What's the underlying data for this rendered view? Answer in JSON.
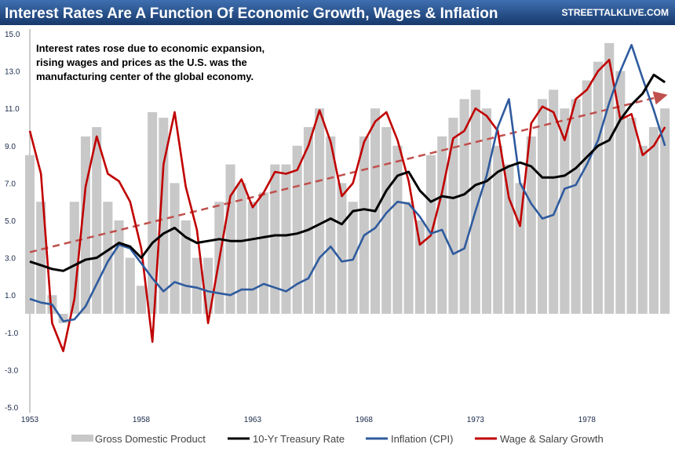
{
  "header": {
    "title": "Interest Rates Are A Function Of Economic Growth, Wages & Inflation",
    "brand": "STREETTALKLIVE.COM"
  },
  "chart_data": {
    "type": "line",
    "x_ticks": [
      "1953",
      "1958",
      "1963",
      "1968",
      "1973",
      "1978"
    ],
    "y_ticks": [
      "15.0",
      "13.0",
      "11.0",
      "9.0",
      "7.0",
      "5.0",
      "3.0",
      "1.0",
      "-1.0",
      "-3.0",
      "-5.0"
    ],
    "ylim": [
      -5,
      15
    ],
    "xlim": [
      1953,
      1981.6
    ],
    "annotation": [
      "Interest rates rose due to  economic expansion,",
      "rising wages and prices as the U.S. was the",
      "manufacturing center of the global economy."
    ],
    "trend_line": {
      "x": [
        1953,
        1981.5
      ],
      "y": [
        3.3,
        11.7
      ]
    },
    "series": [
      {
        "name": "Gross Domestic Product",
        "kind": "bars",
        "color": "#c8c8c8",
        "x": [
          1953,
          1953.5,
          1954,
          1954.5,
          1955,
          1955.5,
          1956,
          1956.5,
          1957,
          1957.5,
          1958,
          1958.5,
          1959,
          1959.5,
          1960,
          1960.5,
          1961,
          1961.5,
          1962,
          1962.5,
          1963,
          1963.5,
          1964,
          1964.5,
          1965,
          1965.5,
          1966,
          1966.5,
          1967,
          1967.5,
          1968,
          1968.5,
          1969,
          1969.5,
          1970,
          1970.5,
          1971,
          1971.5,
          1972,
          1972.5,
          1973,
          1973.5,
          1974,
          1974.5,
          1975,
          1975.5,
          1976,
          1976.5,
          1977,
          1977.5,
          1978,
          1978.5,
          1979,
          1979.5,
          1980,
          1980.5,
          1981,
          1981.5
        ],
        "values": [
          8.5,
          6,
          1,
          -0.5,
          6,
          9.5,
          10,
          6,
          5,
          3,
          1.5,
          10.8,
          10.5,
          7,
          5,
          3,
          3,
          6,
          8,
          7,
          6,
          6.5,
          8,
          8,
          9,
          10,
          11,
          9.5,
          7,
          6,
          9.5,
          11,
          10,
          9,
          6,
          5,
          8.5,
          9.5,
          10.5,
          11.5,
          12,
          11,
          9,
          8,
          7,
          9.5,
          11.5,
          12,
          11,
          11.5,
          12.5,
          13.5,
          14.5,
          13,
          10.5,
          9,
          10,
          11
        ]
      },
      {
        "name": "10-Yr Treasury Rate",
        "kind": "line",
        "color": "#000000",
        "x": [
          1953,
          1953.5,
          1954,
          1954.5,
          1955,
          1955.5,
          1956,
          1956.5,
          1957,
          1957.5,
          1958,
          1958.5,
          1959,
          1959.5,
          1960,
          1960.5,
          1961,
          1961.5,
          1962,
          1962.5,
          1963,
          1963.5,
          1964,
          1964.5,
          1965,
          1965.5,
          1966,
          1966.5,
          1967,
          1967.5,
          1968,
          1968.5,
          1969,
          1969.5,
          1970,
          1970.5,
          1971,
          1971.5,
          1972,
          1972.5,
          1973,
          1973.5,
          1974,
          1974.5,
          1975,
          1975.5,
          1976,
          1976.5,
          1977,
          1977.5,
          1978,
          1978.5,
          1979,
          1979.5,
          1980,
          1980.5,
          1981,
          1981.5
        ],
        "values": [
          2.8,
          2.6,
          2.4,
          2.3,
          2.6,
          2.9,
          3.0,
          3.4,
          3.8,
          3.6,
          3.0,
          3.8,
          4.3,
          4.6,
          4.1,
          3.8,
          3.9,
          4.0,
          3.9,
          3.9,
          4.0,
          4.1,
          4.2,
          4.2,
          4.3,
          4.5,
          4.8,
          5.1,
          4.8,
          5.5,
          5.6,
          5.5,
          6.6,
          7.4,
          7.6,
          6.6,
          6.0,
          6.3,
          6.2,
          6.4,
          6.9,
          7.1,
          7.6,
          7.9,
          8.1,
          7.9,
          7.3,
          7.3,
          7.4,
          7.8,
          8.4,
          9.0,
          9.3,
          10.4,
          11.2,
          11.8,
          12.8,
          12.4
        ]
      },
      {
        "name": "Inflation (CPI)",
        "kind": "line",
        "color": "#2e5b9e",
        "x": [
          1953,
          1953.5,
          1954,
          1954.5,
          1955,
          1955.5,
          1956,
          1956.5,
          1957,
          1957.5,
          1958,
          1958.5,
          1959,
          1959.5,
          1960,
          1960.5,
          1961,
          1961.5,
          1962,
          1962.5,
          1963,
          1963.5,
          1964,
          1964.5,
          1965,
          1965.5,
          1966,
          1966.5,
          1967,
          1967.5,
          1968,
          1968.5,
          1969,
          1969.5,
          1970,
          1970.5,
          1971,
          1971.5,
          1972,
          1972.5,
          1973,
          1973.5,
          1974,
          1974.5,
          1975,
          1975.5,
          1976,
          1976.5,
          1977,
          1977.5,
          1978,
          1978.5,
          1979,
          1979.5,
          1980,
          1980.5,
          1981,
          1981.5
        ],
        "values": [
          0.8,
          0.6,
          0.5,
          -0.4,
          -0.3,
          0.4,
          1.6,
          2.8,
          3.7,
          3.5,
          2.7,
          1.9,
          1.2,
          1.7,
          1.5,
          1.4,
          1.2,
          1.1,
          1.0,
          1.3,
          1.3,
          1.6,
          1.4,
          1.2,
          1.6,
          1.9,
          3.0,
          3.6,
          2.8,
          2.9,
          4.2,
          4.6,
          5.4,
          6.0,
          5.9,
          5.2,
          4.3,
          4.5,
          3.2,
          3.5,
          5.5,
          7.4,
          10.0,
          11.5,
          7.0,
          5.9,
          5.1,
          5.3,
          6.7,
          6.9,
          8.0,
          9.3,
          11.3,
          13.0,
          14.4,
          12.6,
          10.9,
          9.0
        ]
      },
      {
        "name": "Wage & Salary Growth",
        "kind": "line",
        "color": "#c00000",
        "x": [
          1953,
          1953.5,
          1954,
          1954.5,
          1955,
          1955.5,
          1956,
          1956.5,
          1957,
          1957.5,
          1958,
          1958.5,
          1959,
          1959.5,
          1960,
          1960.5,
          1961,
          1961.5,
          1962,
          1962.5,
          1963,
          1963.5,
          1964,
          1964.5,
          1965,
          1965.5,
          1966,
          1966.5,
          1967,
          1967.5,
          1968,
          1968.5,
          1969,
          1969.5,
          1970,
          1970.5,
          1971,
          1971.5,
          1972,
          1972.5,
          1973,
          1973.5,
          1974,
          1974.5,
          1975,
          1975.5,
          1976,
          1976.5,
          1977,
          1977.5,
          1978,
          1978.5,
          1979,
          1979.5,
          1980,
          1980.5,
          1981,
          1981.5
        ],
        "values": [
          9.8,
          7.5,
          -0.5,
          -2.0,
          0.8,
          6.8,
          9.5,
          7.5,
          7.1,
          6.0,
          3.5,
          -1.5,
          8.0,
          10.8,
          6.8,
          4.5,
          -0.5,
          2.9,
          6.3,
          7.2,
          5.7,
          6.5,
          7.6,
          7.5,
          7.7,
          9.0,
          10.9,
          9.2,
          6.3,
          7.0,
          9.2,
          10.3,
          10.8,
          9.3,
          7.1,
          3.7,
          4.2,
          6.5,
          9.4,
          9.8,
          11.0,
          10.6,
          9.8,
          6.2,
          4.7,
          10.2,
          11.1,
          10.8,
          9.3,
          11.5,
          12.0,
          13.0,
          13.6,
          10.4,
          10.7,
          8.5,
          9.0,
          10.0
        ]
      }
    ]
  }
}
